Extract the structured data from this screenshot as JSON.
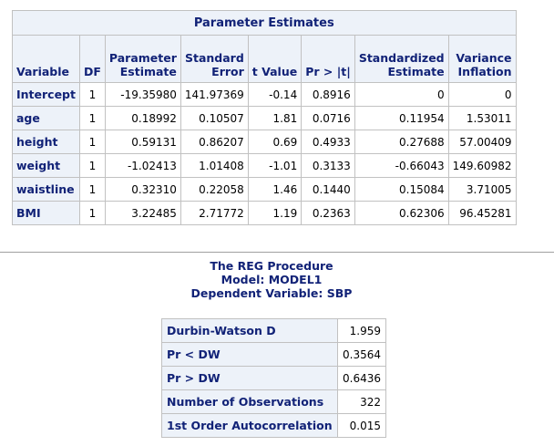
{
  "param_table": {
    "title": "Parameter Estimates",
    "headers": {
      "variable": "Variable",
      "df": "DF",
      "param_estimate_1": "Parameter",
      "param_estimate_2": "Estimate",
      "std_error_1": "Standard",
      "std_error_2": "Error",
      "t_value": "t Value",
      "pr_t": "Pr > |t|",
      "std_estimate_1": "Standardized",
      "std_estimate_2": "Estimate",
      "var_infl_1": "Variance",
      "var_infl_2": "Inflation"
    },
    "rows": [
      {
        "variable": "Intercept",
        "df": "1",
        "estimate": "-19.35980",
        "stderr": "141.97369",
        "t": "-0.14",
        "p": "0.8916",
        "std_est": "0",
        "vif": "0"
      },
      {
        "variable": "age",
        "df": "1",
        "estimate": "0.18992",
        "stderr": "0.10507",
        "t": "1.81",
        "p": "0.0716",
        "std_est": "0.11954",
        "vif": "1.53011"
      },
      {
        "variable": "height",
        "df": "1",
        "estimate": "0.59131",
        "stderr": "0.86207",
        "t": "0.69",
        "p": "0.4933",
        "std_est": "0.27688",
        "vif": "57.00409"
      },
      {
        "variable": "weight",
        "df": "1",
        "estimate": "-1.02413",
        "stderr": "1.01408",
        "t": "-1.01",
        "p": "0.3133",
        "std_est": "-0.66043",
        "vif": "149.60982"
      },
      {
        "variable": "waistline",
        "df": "1",
        "estimate": "0.32310",
        "stderr": "0.22058",
        "t": "1.46",
        "p": "0.1440",
        "std_est": "0.15084",
        "vif": "3.71005"
      },
      {
        "variable": "BMI",
        "df": "1",
        "estimate": "3.22485",
        "stderr": "2.71772",
        "t": "1.19",
        "p": "0.2363",
        "std_est": "0.62306",
        "vif": "96.45281"
      }
    ]
  },
  "procedure": {
    "line1": "The REG Procedure",
    "line2": "Model: MODEL1",
    "line3": "Dependent Variable: SBP"
  },
  "dw_table": {
    "rows": [
      {
        "label": "Durbin-Watson D",
        "value": "1.959"
      },
      {
        "label": "Pr < DW",
        "value": "0.3564"
      },
      {
        "label": "Pr > DW",
        "value": "0.6436"
      },
      {
        "label": "Number of Observations",
        "value": "322"
      },
      {
        "label": "1st Order Autocorrelation",
        "value": "0.015"
      }
    ]
  },
  "colors": {
    "header_bg": "#edf2f9",
    "header_text": "#112277",
    "border": "#c1c1c1"
  }
}
